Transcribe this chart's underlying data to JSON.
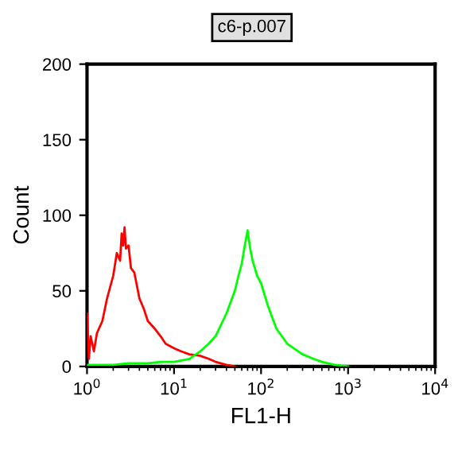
{
  "chart_data": {
    "type": "line",
    "title": "c6-p.007",
    "xlabel": "FL1-H",
    "ylabel": "Count",
    "log": "x",
    "xlim": [
      1,
      10000
    ],
    "xticks": [
      {
        "value": 1,
        "label": "10$^{0}$"
      },
      {
        "value": 10,
        "label": "10$^{1}$"
      },
      {
        "value": 100,
        "label": "10$^{2}$"
      },
      {
        "value": 1000,
        "label": "10$^{3}$"
      },
      {
        "value": 10000,
        "label": "10$^{4}$"
      }
    ],
    "ylim": [
      0,
      200
    ],
    "yticks": [
      0,
      50,
      100,
      150,
      200
    ],
    "grid": false,
    "legend": false,
    "marker": "none",
    "line_style": "solid",
    "series": [
      {
        "color": "#ff0000",
        "x": [
          1,
          1.05,
          1.1,
          1.2,
          1.3,
          1.5,
          1.7,
          2,
          2.2,
          2.4,
          2.5,
          2.6,
          2.7,
          2.8,
          3,
          3.2,
          3.5,
          4,
          4.5,
          5,
          6,
          7,
          8,
          10,
          12,
          15,
          20,
          25,
          30,
          40,
          50
        ],
        "values": [
          35,
          5,
          20,
          10,
          22,
          30,
          45,
          60,
          75,
          70,
          88,
          80,
          92,
          78,
          80,
          65,
          62,
          45,
          38,
          30,
          25,
          20,
          15,
          12,
          10,
          8,
          7,
          5,
          3,
          1,
          0
        ]
      },
      {
        "color": "#00ff00",
        "x": [
          1,
          2,
          3,
          5,
          7,
          10,
          15,
          20,
          25,
          30,
          40,
          50,
          55,
          60,
          65,
          70,
          75,
          80,
          90,
          100,
          120,
          150,
          200,
          300,
          400,
          500,
          700,
          1000
        ],
        "values": [
          1,
          1,
          2,
          2,
          3,
          3,
          5,
          10,
          15,
          20,
          35,
          50,
          60,
          68,
          80,
          90,
          78,
          70,
          60,
          55,
          40,
          25,
          15,
          8,
          5,
          3,
          1,
          0
        ]
      }
    ]
  }
}
